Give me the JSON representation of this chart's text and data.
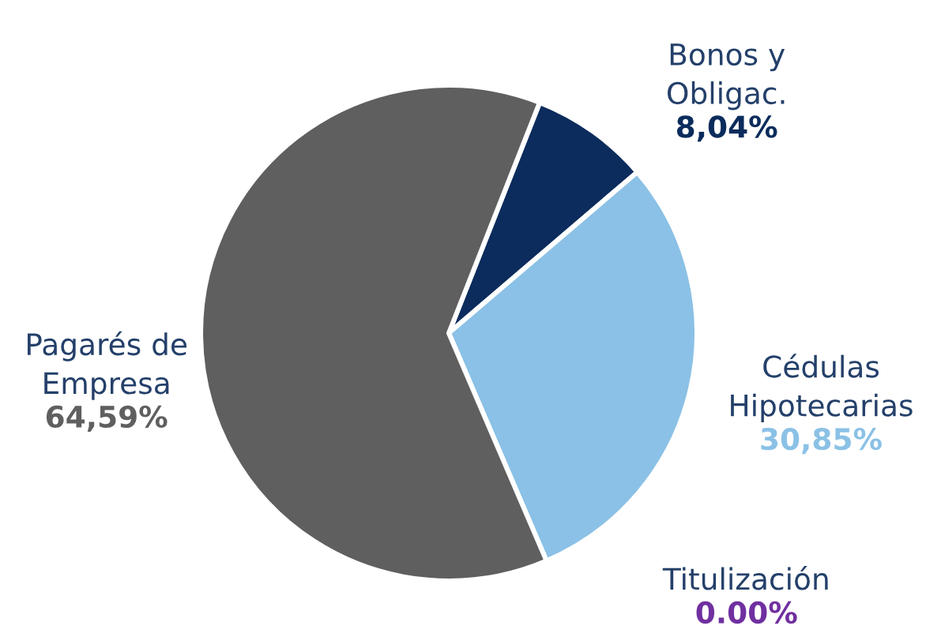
{
  "chart_data": {
    "type": "pie",
    "categories": [
      "Bonos y\nObligac.",
      "Cédulas\nHipotecarias",
      "Titulización",
      "Pagarés de\nEmpresa"
    ],
    "values": [
      8.04,
      30.85,
      0,
      64.59
    ],
    "colors": [
      "#0b2c5c",
      "#8bc1e6",
      "#7030a0",
      "#5f5f5f"
    ],
    "value_labels": [
      "8,04%",
      "30,85%",
      "0.00%",
      "64,59%"
    ]
  }
}
